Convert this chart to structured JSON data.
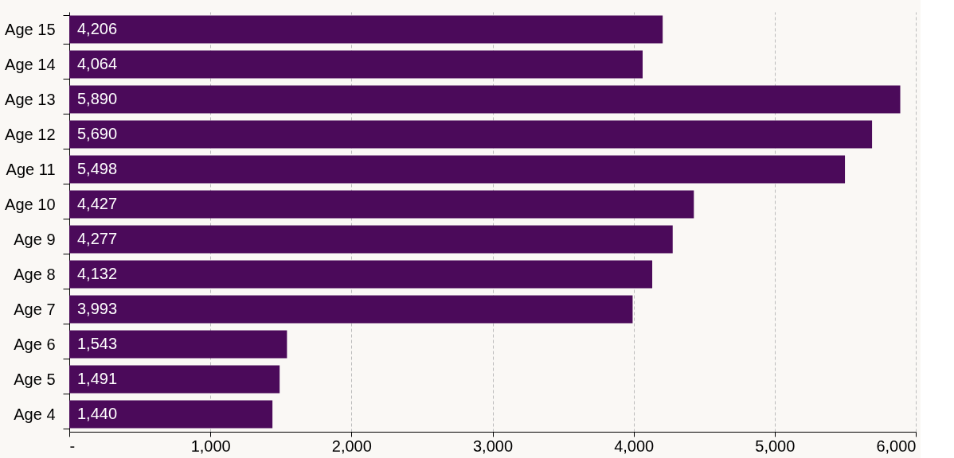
{
  "chart_data": {
    "type": "bar",
    "orientation": "horizontal",
    "categories": [
      "Age 15",
      "Age 14",
      "Age 13",
      "Age 12",
      "Age 11",
      "Age 10",
      "Age 9",
      "Age 8",
      "Age 7",
      "Age 6",
      "Age 5",
      "Age 4"
    ],
    "values": [
      4206,
      4064,
      5890,
      5690,
      5498,
      4427,
      4277,
      4132,
      3993,
      1543,
      1491,
      1440
    ],
    "color": "#4b0a5a",
    "xlim": [
      0,
      6000
    ],
    "xticks": [
      {
        "value": 0,
        "label": "-"
      },
      {
        "value": 1000,
        "label": "1,000"
      },
      {
        "value": 2000,
        "label": "2,000"
      },
      {
        "value": 3000,
        "label": "3,000"
      },
      {
        "value": 4000,
        "label": "4,000"
      },
      {
        "value": 5000,
        "label": "5,000"
      },
      {
        "value": 6000,
        "label": "6,000"
      }
    ],
    "value_labels": [
      "4,206",
      "4,064",
      "5,890",
      "5,690",
      "5,498",
      "4,427",
      "4,277",
      "4,132",
      "3,993",
      "1,543",
      "1,491",
      "1,440"
    ],
    "grid": "x"
  }
}
